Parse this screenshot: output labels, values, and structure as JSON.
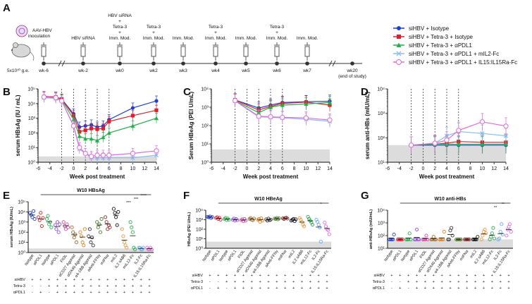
{
  "panels": {
    "A": "A",
    "B": "B",
    "C": "C",
    "D": "D",
    "E": "E",
    "F": "F",
    "G": "G"
  },
  "colors": {
    "isotype": "#1f3fd1",
    "tetra_isotype": "#e01d2a",
    "apdl1": "#22b04a",
    "mil2": "#88bff0",
    "il15": "#e16ad8",
    "shade": "#dcdcdc",
    "grey": "#555555"
  },
  "timeline": {
    "dose_label": "5x10¹⁰ g.e.",
    "aav_label": "AAV-HBV\ninoculation",
    "points": [
      {
        "wk": "wk-6",
        "above": ""
      },
      {
        "wk": "wk-2",
        "above": "HBV siRNA"
      },
      {
        "wk": "wk0",
        "above": "HBV siRNA\n+\nTetra-3\n+\nImm. Mod."
      },
      {
        "wk": "wk2",
        "above": "Tetra-3\n+\nImm. Mod."
      },
      {
        "wk": "wk3",
        "above": "Imm. Mod."
      },
      {
        "wk": "wk4",
        "above": "Tetra-3\n+\nImm. Mod."
      },
      {
        "wk": "wk5",
        "above": "Imm. Mod."
      },
      {
        "wk": "wk6",
        "above": "Tetra-3\n+\nImm. Mod."
      },
      {
        "wk": "wk7",
        "above": "Imm. Mod."
      },
      {
        "wk": "wk20",
        "above": "",
        "below": "(end of study)"
      }
    ]
  },
  "legend": [
    "siHBV + Isotype",
    "siHBV + Tetra-3 + Isotype",
    "siHBV + Tetra-3 + αPDL1",
    "siHBV + Tetra-3 + αPDL1 + mIL2-Fc",
    "siHBV + Tetra-3 + αPDL1 + IL15:IL15Ra-Fc"
  ],
  "chart_data": [
    {
      "panel": "B",
      "type": "line",
      "xlabel": "Week post treatment",
      "ylabel": "serum HBsAg (IU / mL)",
      "scale": "log",
      "xlim": [
        -6,
        14
      ],
      "ylim": [
        1,
        100000
      ],
      "xticks": [
        "-6",
        "-4",
        "-2",
        "0",
        "2",
        "4",
        "6",
        "8",
        "10",
        "12",
        "14"
      ],
      "yticks": [
        "10⁰",
        "10¹",
        "10²",
        "10³",
        "10⁴",
        "10⁵"
      ],
      "x": [
        -5,
        -3,
        -2,
        0,
        1,
        2,
        3,
        4,
        5,
        6,
        10,
        14
      ],
      "series": [
        {
          "name": "siHBV + Isotype",
          "values": [
            30000,
            28000,
            20000,
            2000,
            250,
            300,
            350,
            250,
            300,
            800,
            5000,
            15000
          ]
        },
        {
          "name": "siHBV + Tetra-3 + Isotype",
          "values": [
            30000,
            28000,
            20000,
            1500,
            120,
            150,
            200,
            180,
            200,
            600,
            1500,
            3500
          ]
        },
        {
          "name": "siHBV + Tetra-3 + αPDL1",
          "values": [
            28000,
            25000,
            18000,
            800,
            60,
            40,
            40,
            30,
            50,
            100,
            300,
            1000
          ]
        },
        {
          "name": "siHBV + Tetra-3 + αPDL1 + mIL2-Fc",
          "values": [
            25000,
            22000,
            15000,
            300,
            8,
            4,
            2,
            2,
            2,
            2,
            2,
            3
          ]
        },
        {
          "name": "siHBV + Tetra-3 + αPDL1 + IL15:IL15Ra-Fc",
          "values": [
            28000,
            25000,
            15000,
            300,
            10,
            4,
            2.5,
            3,
            3,
            3,
            4,
            6
          ]
        }
      ]
    },
    {
      "panel": "C",
      "type": "line",
      "xlabel": "Week post treatment",
      "ylabel": "Serum HBeAg (PEI U/mL)",
      "scale": "log",
      "xlim": [
        -6,
        14
      ],
      "ylim": [
        1,
        10000
      ],
      "xticks": [
        "-6",
        "-4",
        "-2",
        "0",
        "2",
        "4",
        "6",
        "8",
        "10",
        "12",
        "14"
      ],
      "yticks": [
        "10⁰",
        "10¹",
        "10²",
        "10³",
        "10⁴"
      ],
      "x": [
        -2,
        2,
        4,
        6,
        10,
        14
      ],
      "series": [
        {
          "name": "siHBV + Isotype",
          "values": [
            2500,
            900,
            1300,
            1800,
            2000,
            2100
          ]
        },
        {
          "name": "siHBV + Tetra-3 + Isotype",
          "values": [
            2500,
            700,
            1100,
            1600,
            1900,
            1300
          ]
        },
        {
          "name": "siHBV + Tetra-3 + αPDL1",
          "values": [
            2300,
            500,
            1000,
            1300,
            1500,
            1800
          ]
        },
        {
          "name": "siHBV + Tetra-3 + αPDL1 + mIL2-Fc",
          "values": [
            2200,
            300,
            280,
            260,
            220,
            170
          ]
        },
        {
          "name": "siHBV + Tetra-3 + αPDL1 + IL15:IL15Ra-Fc",
          "values": [
            2300,
            320,
            300,
            280,
            260,
            200
          ]
        }
      ]
    },
    {
      "panel": "D",
      "type": "line",
      "xlabel": "Week post treatment",
      "ylabel": "serum anti-HBs (mIU/mL)",
      "scale": "log",
      "xlim": [
        -6,
        14
      ],
      "ylim": [
        10,
        10000
      ],
      "xticks": [
        "-6",
        "-4",
        "-2",
        "0",
        "2",
        "4",
        "6",
        "8",
        "10",
        "12",
        "14"
      ],
      "yticks": [
        "10¹",
        "10²",
        "10³",
        "10⁴"
      ],
      "x": [
        -2,
        2,
        4,
        6,
        10,
        14
      ],
      "series": [
        {
          "name": "siHBV + Isotype",
          "values": [
            50,
            50,
            50,
            50,
            50,
            50
          ]
        },
        {
          "name": "siHBV + Tetra-3 + Isotype",
          "values": [
            50,
            55,
            60,
            70,
            65,
            65
          ]
        },
        {
          "name": "siHBV + Tetra-3 + αPDL1",
          "values": [
            50,
            55,
            55,
            55,
            55,
            55
          ]
        },
        {
          "name": "siHBV + Tetra-3 + αPDL1 + mIL2-Fc",
          "values": [
            50,
            60,
            120,
            180,
            150,
            120
          ]
        },
        {
          "name": "siHBV + Tetra-3 + αPDL1 + IL15:IL15Ra-Fc",
          "values": [
            50,
            60,
            80,
            200,
            450,
            300
          ]
        }
      ]
    },
    {
      "panel": "E",
      "type": "scatter",
      "title": "W10 HBsAg",
      "ylabel": "serum HBsAg (IU/mL)",
      "scale": "log",
      "ylim": [
        1,
        100000
      ],
      "yticks": [
        "10⁰",
        "10¹",
        "10²",
        "10³",
        "10⁴",
        "10⁵"
      ],
      "significance": [
        "****",
        "***",
        "***"
      ],
      "categories": [
        "Isotype",
        "αPDL1",
        "Isotype",
        "αPDL1",
        "FIt3L",
        "αCD27 Agonist",
        "αOX40 Agonist",
        "α4-1BB Agonist",
        "αAnti-FFNγ",
        "mIFNα",
        "mIL2",
        "IL2 sAB6",
        "mIL12-Fc",
        "IL2-Fc",
        "IL15:IL15Ra-Fc"
      ],
      "rows": [
        {
          "name": "siHBV",
          "marks": [
            "+",
            "+",
            "+",
            "+",
            "+",
            "+",
            "+",
            "+",
            "+",
            "+",
            "+",
            "+",
            "+",
            "+",
            "+"
          ]
        },
        {
          "name": "Tetra-3",
          "marks": [
            "-",
            "-",
            "+",
            "+",
            "+",
            "+",
            "+",
            "+",
            "+",
            "+",
            "+",
            "+",
            "+",
            "+",
            "+"
          ]
        },
        {
          "name": "αPDL1",
          "marks": [
            "-",
            "+",
            "-",
            "+",
            "+",
            "+",
            "+",
            "+",
            "+",
            "+",
            "+",
            "+",
            "+",
            "+",
            "+"
          ]
        }
      ],
      "values": [
        [
          8000,
          5000,
          3000,
          12000,
          2000
        ],
        [
          3000,
          1500,
          8000,
          400,
          2500
        ],
        [
          2000,
          4000,
          600,
          1000,
          300
        ],
        [
          500,
          200,
          1000,
          100,
          600
        ],
        [
          1000,
          400,
          200,
          600,
          300
        ],
        [
          300,
          100,
          30,
          60,
          10
        ],
        [
          100,
          40,
          10,
          5,
          200
        ],
        [
          40,
          200,
          10,
          30,
          5
        ],
        [
          1000,
          300,
          600,
          100,
          2000
        ],
        [
          3000,
          1000,
          200,
          500,
          300
        ],
        [
          20000,
          8000,
          3000,
          500,
          10000
        ],
        [
          200,
          40,
          10,
          5,
          3
        ],
        [
          1000,
          300,
          100,
          3,
          2
        ],
        [
          3,
          3,
          2,
          2,
          3
        ],
        [
          3,
          2,
          2,
          3,
          2
        ]
      ]
    },
    {
      "panel": "F",
      "type": "scatter",
      "title": "W10 HBeAg",
      "ylabel": "HBeAg (PEI U/mL)",
      "scale": "log",
      "ylim": [
        1,
        10000
      ],
      "yticks": [
        "10⁰",
        "10¹",
        "10²",
        "10³",
        "10⁴"
      ],
      "significance": [
        "*"
      ],
      "categories": [
        "Isotype",
        "αPDL1",
        "Isotype",
        "αPDL1",
        "FIt3L",
        "αCD27 Agonist",
        "αOX40 Agonist",
        "α4-1BB Agonist",
        "αAnti-FFNγ",
        "mIFNα",
        "mIL2",
        "IL2 sAB6",
        "mIL12-Fc",
        "IL2-Fc",
        "IL15:IL15Ra-Fc"
      ],
      "rows": [
        {
          "name": "siHBV",
          "marks": [
            "+",
            "+",
            "+",
            "+",
            "+",
            "+",
            "+",
            "+",
            "+",
            "+",
            "+",
            "+",
            "+",
            "+",
            "+"
          ]
        },
        {
          "name": "Tetra-3",
          "marks": [
            "-",
            "-",
            "+",
            "+",
            "+",
            "+",
            "+",
            "+",
            "+",
            "+",
            "+",
            "+",
            "+",
            "+",
            "+"
          ]
        },
        {
          "name": "αPDL1",
          "marks": [
            "-",
            "+",
            "-",
            "+",
            "+",
            "+",
            "+",
            "+",
            "+",
            "+",
            "+",
            "+",
            "+",
            "+",
            "+"
          ]
        }
      ],
      "values": [
        [
          2000,
          1800,
          2200,
          1500,
          1900
        ],
        [
          1500,
          1800,
          1200,
          1600,
          1000
        ],
        [
          1200,
          1500,
          900,
          1300,
          1000
        ],
        [
          1000,
          1300,
          800,
          1200,
          900
        ],
        [
          900,
          1100,
          700,
          1200,
          800
        ],
        [
          1200,
          1500,
          1000,
          900,
          1300
        ],
        [
          1000,
          1200,
          600,
          1400,
          800
        ],
        [
          1100,
          800,
          1300,
          900,
          1000
        ],
        [
          1300,
          1200,
          1500,
          1100,
          1400
        ],
        [
          1400,
          1200,
          1500,
          1600,
          1300
        ],
        [
          800,
          1000,
          1200,
          700,
          1100
        ],
        [
          1500,
          1000,
          600,
          300,
          200
        ],
        [
          2000,
          1200,
          800,
          500,
          300
        ],
        [
          1000,
          600,
          300,
          150,
          5
        ],
        [
          500,
          200,
          100,
          80,
          30
        ]
      ]
    },
    {
      "panel": "G",
      "type": "scatter",
      "title": "W10 anti-HBs",
      "ylabel": "anti-HBsAg (mIU/mL)",
      "scale": "log",
      "ylim": [
        10,
        10000
      ],
      "yticks": [
        "10¹",
        "10²",
        "10³",
        "10⁴"
      ],
      "significance": [
        "**",
        "**"
      ],
      "categories": [
        "Isotype",
        "αPDL1",
        "Isotype",
        "αPDL1",
        "FIt3L",
        "αCD27 Agonist",
        "αOX40 Agonist",
        "α4-1BB Agonist",
        "αAnti-FFNγ",
        "mIFNα",
        "mIL2",
        "IL2 sAB6",
        "mIL12-Fc",
        "IL2-Fc",
        "IL15:IL15Ra-Fc"
      ],
      "rows": [
        {
          "name": "siHBV",
          "marks": [
            "+",
            "+",
            "+",
            "+",
            "+",
            "+",
            "+",
            "+",
            "+",
            "+",
            "+",
            "+",
            "+",
            "+",
            "+"
          ]
        },
        {
          "name": "Tetra-3",
          "marks": [
            "-",
            "-",
            "+",
            "+",
            "+",
            "+",
            "+",
            "+",
            "+",
            "+",
            "+",
            "+",
            "+",
            "+",
            "+"
          ]
        },
        {
          "name": "αPDL1",
          "marks": [
            "-",
            "+",
            "-",
            "+",
            "+",
            "+",
            "+",
            "+",
            "+",
            "+",
            "+",
            "+",
            "+",
            "+",
            "+"
          ]
        }
      ],
      "values": [
        [
          50,
          50,
          50,
          50,
          120
        ],
        [
          50,
          50,
          50,
          50,
          50
        ],
        [
          50,
          50,
          50,
          150,
          50
        ],
        [
          50,
          50,
          300,
          50,
          50
        ],
        [
          50,
          50,
          50,
          100,
          50
        ],
        [
          50,
          50,
          80,
          50,
          50
        ],
        [
          50,
          50,
          50,
          50,
          200
        ],
        [
          50,
          50,
          250,
          400,
          100
        ],
        [
          50,
          50,
          50,
          50,
          50
        ],
        [
          50,
          50,
          50,
          50,
          50
        ],
        [
          50,
          50,
          50,
          50,
          80
        ],
        [
          50,
          100,
          200,
          300,
          150
        ],
        [
          50,
          80,
          150,
          400,
          60
        ],
        [
          50,
          60,
          200,
          800,
          120
        ],
        [
          100,
          300,
          500,
          800,
          200
        ]
      ]
    }
  ]
}
